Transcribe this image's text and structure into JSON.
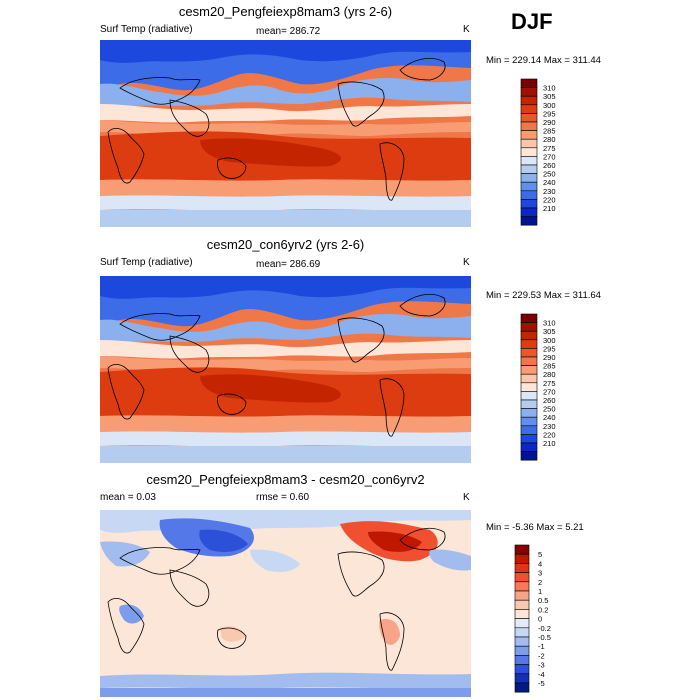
{
  "season": "DJF",
  "panels": [
    {
      "title": "cesm20_Pengfeiexp8mam3 (yrs 2-6)",
      "left_label": "Surf Temp (radiative)",
      "center_label": "mean= 286.72",
      "units": "K",
      "minmax": "Min = 229.14 Max = 311.44",
      "colorbar_labels": [
        "310",
        "305",
        "300",
        "295",
        "290",
        "285",
        "280",
        "275",
        "270",
        "260",
        "250",
        "240",
        "230",
        "220",
        "210"
      ]
    },
    {
      "title": "cesm20_con6yrv2 (yrs 2-6)",
      "left_label": "Surf Temp (radiative)",
      "center_label": "mean= 286.69",
      "units": "K",
      "minmax": "Min = 229.53 Max = 311.64",
      "colorbar_labels": [
        "310",
        "305",
        "300",
        "295",
        "290",
        "285",
        "280",
        "275",
        "270",
        "260",
        "250",
        "240",
        "230",
        "220",
        "210"
      ]
    },
    {
      "title": "cesm20_Pengfeiexp8mam3 - cesm20_con6yrv2",
      "left_label": "mean =   0.03",
      "center_label": "rmse =   0.60",
      "units": "K",
      "minmax": "Min =  -5.36 Max =   5.21",
      "colorbar_labels": [
        "5",
        "4",
        "3",
        "2",
        "1",
        "0.5",
        "0.2",
        "0",
        "-0.2",
        "-0.5",
        "-1",
        "-2",
        "-3",
        "-4",
        "-5"
      ]
    }
  ],
  "colors": {
    "temp_scale": [
      "#7a0000",
      "#a01200",
      "#c42400",
      "#dc3c10",
      "#e85828",
      "#f07848",
      "#f89c74",
      "#fcc4a8",
      "#fde5d8",
      "#dbe6f6",
      "#b4ccf0",
      "#8cb0ee",
      "#6090ec",
      "#3c6ce8",
      "#1c48de",
      "#0a28c8",
      "#001490"
    ],
    "diff_scale": [
      "#8a0000",
      "#c01800",
      "#e03418",
      "#f05030",
      "#f87858",
      "#f8a488",
      "#f8c8b0",
      "#fce6d8",
      "#e2ecf8",
      "#c6d8f4",
      "#a2bcf0",
      "#7c9cec",
      "#5478e8",
      "#2c50d8",
      "#1430b8",
      "#001a88"
    ]
  }
}
